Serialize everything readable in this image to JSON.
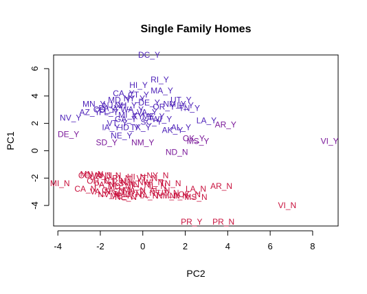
{
  "chart_data": {
    "type": "scatter",
    "title": "Single Family Homes",
    "xlabel": "PC2",
    "ylabel": "PC1",
    "xlim": [
      -4.2,
      9.2
    ],
    "ylim": [
      -5.5,
      7.0
    ],
    "x_ticks": [
      -4,
      -2,
      0,
      2,
      4,
      6,
      8
    ],
    "y_ticks": [
      -4,
      -2,
      0,
      2,
      4,
      6
    ],
    "grid": false,
    "legend": "none",
    "colors": {
      "Y": "#4b1fb8",
      "N": "#c8103c",
      "both": "#7a1899"
    },
    "points": [
      {
        "label": "DC_Y",
        "x": 0.3,
        "y": 7.0,
        "color": "#4b1fb8"
      },
      {
        "label": "RI_Y",
        "x": 0.8,
        "y": 5.2,
        "color": "#4b1fb8"
      },
      {
        "label": "HI_Y",
        "x": -0.2,
        "y": 4.8,
        "color": "#4b1fb8"
      },
      {
        "label": "MA_Y",
        "x": 0.9,
        "y": 4.4,
        "color": "#4b1fb8"
      },
      {
        "label": "CA_Y",
        "x": -0.9,
        "y": 4.2,
        "color": "#4b1fb8"
      },
      {
        "label": "CT_Y",
        "x": -0.2,
        "y": 4.1,
        "color": "#4b1fb8"
      },
      {
        "label": "NY_Y",
        "x": -0.4,
        "y": 3.8,
        "color": "#4b1fb8"
      },
      {
        "label": "MD_Y",
        "x": -1.1,
        "y": 3.7,
        "color": "#4b1fb8"
      },
      {
        "label": "UT_Y",
        "x": 1.8,
        "y": 3.7,
        "color": "#4b1fb8"
      },
      {
        "label": "MN_Y",
        "x": -2.3,
        "y": 3.4,
        "color": "#4b1fb8"
      },
      {
        "label": "NJ_Y",
        "x": -1.4,
        "y": 3.3,
        "color": "#4b1fb8"
      },
      {
        "label": "NH_Y",
        "x": -0.8,
        "y": 3.3,
        "color": "#4b1fb8"
      },
      {
        "label": "DE_Y",
        "x": 0.3,
        "y": 3.5,
        "color": "#4b1fb8"
      },
      {
        "label": "OR_Y",
        "x": 1.0,
        "y": 3.2,
        "color": "#4b1fb8"
      },
      {
        "label": "NM_Y",
        "x": 1.5,
        "y": 3.4,
        "color": "#4b1fb8"
      },
      {
        "label": "IL_Y",
        "x": 2.0,
        "y": 3.3,
        "color": "#4b1fb8"
      },
      {
        "label": "PA_Y",
        "x": -1.6,
        "y": 3.1,
        "color": "#4b1fb8"
      },
      {
        "label": "WA_Y",
        "x": -0.5,
        "y": 3.0,
        "color": "#4b1fb8"
      },
      {
        "label": "TN_Y",
        "x": 2.2,
        "y": 3.1,
        "color": "#4b1fb8"
      },
      {
        "label": "CO_Y",
        "x": -1.8,
        "y": 3.0,
        "color": "#4b1fb8"
      },
      {
        "label": "VA_Y",
        "x": 0.2,
        "y": 2.8,
        "color": "#4b1fb8"
      },
      {
        "label": "AZ_Y",
        "x": -2.5,
        "y": 2.8,
        "color": "#4b1fb8"
      },
      {
        "label": "FL_Y",
        "x": -1.6,
        "y": 2.8,
        "color": "#4b1fb8"
      },
      {
        "label": "MI_Y",
        "x": -0.7,
        "y": 2.6,
        "color": "#4b1fb8"
      },
      {
        "label": "KY_Y",
        "x": 0.0,
        "y": 2.5,
        "color": "#4b1fb8"
      },
      {
        "label": "ME_Y",
        "x": 0.5,
        "y": 2.5,
        "color": "#4b1fb8"
      },
      {
        "label": "NV_Y",
        "x": -3.4,
        "y": 2.4,
        "color": "#4b1fb8"
      },
      {
        "label": "GA_Y",
        "x": -0.8,
        "y": 2.3,
        "color": "#4b1fb8"
      },
      {
        "label": "VT_Y",
        "x": -1.2,
        "y": 2.0,
        "color": "#4b1fb8"
      },
      {
        "label": "SC_Y",
        "x": 0.4,
        "y": 2.1,
        "color": "#4b1fb8"
      },
      {
        "label": "WI_Y",
        "x": 0.9,
        "y": 2.3,
        "color": "#4b1fb8"
      },
      {
        "label": "LA_Y",
        "x": 3.0,
        "y": 2.2,
        "color": "#4b1fb8"
      },
      {
        "label": "AR_Y",
        "x": 3.9,
        "y": 1.9,
        "color": "#7a1899"
      },
      {
        "label": "IA_Y",
        "x": -1.5,
        "y": 1.7,
        "color": "#4b1fb8"
      },
      {
        "label": "ID_Y",
        "x": -0.6,
        "y": 1.7,
        "color": "#4b1fb8"
      },
      {
        "label": "TX_Y",
        "x": -0.1,
        "y": 1.7,
        "color": "#4b1fb8"
      },
      {
        "label": "AL_Y",
        "x": 1.8,
        "y": 1.7,
        "color": "#4b1fb8"
      },
      {
        "label": "AK_Y",
        "x": 1.4,
        "y": 1.5,
        "color": "#4b1fb8"
      },
      {
        "label": "NE_Y",
        "x": -1.0,
        "y": 1.1,
        "color": "#4b1fb8"
      },
      {
        "label": "DE_Y",
        "x": -3.5,
        "y": 1.2,
        "color": "#7a1899"
      },
      {
        "label": "OK_Y",
        "x": 2.4,
        "y": 0.9,
        "color": "#7a1899"
      },
      {
        "label": "MS_Y",
        "x": 2.6,
        "y": 0.7,
        "color": "#7a1899"
      },
      {
        "label": "SD_Y",
        "x": -1.7,
        "y": 0.6,
        "color": "#7a1899"
      },
      {
        "label": "NM_Y",
        "x": 0.0,
        "y": 0.6,
        "color": "#7a1899"
      },
      {
        "label": "VI_Y",
        "x": 8.8,
        "y": 0.7,
        "color": "#7a1899"
      },
      {
        "label": "ND_N",
        "x": 1.6,
        "y": -0.1,
        "color": "#7a1899"
      },
      {
        "label": "CO_N",
        "x": -2.5,
        "y": -1.8,
        "color": "#c8103c"
      },
      {
        "label": "WA_N",
        "x": -2.0,
        "y": -1.8,
        "color": "#c8103c"
      },
      {
        "label": "MN_N",
        "x": -2.4,
        "y": -1.7,
        "color": "#c8103c"
      },
      {
        "label": "NJ_N",
        "x": -1.5,
        "y": -1.8,
        "color": "#c8103c"
      },
      {
        "label": "NY_N",
        "x": 0.7,
        "y": -1.8,
        "color": "#c8103c"
      },
      {
        "label": "HI_N",
        "x": -0.3,
        "y": -1.9,
        "color": "#c8103c"
      },
      {
        "label": "RI_N",
        "x": -1.0,
        "y": -2.0,
        "color": "#c8103c"
      },
      {
        "label": "VT_N",
        "x": 0.2,
        "y": -2.0,
        "color": "#c8103c"
      },
      {
        "label": "OH_N",
        "x": -2.1,
        "y": -2.2,
        "color": "#c8103c"
      },
      {
        "label": "CT_N",
        "x": -1.3,
        "y": -2.2,
        "color": "#c8103c"
      },
      {
        "label": "NH_N",
        "x": -0.5,
        "y": -2.3,
        "color": "#c8103c"
      },
      {
        "label": "WI_N",
        "x": 0.5,
        "y": -2.3,
        "color": "#c8103c"
      },
      {
        "label": "MI_N",
        "x": -3.9,
        "y": -2.4,
        "color": "#c8103c"
      },
      {
        "label": "KS_N",
        "x": -0.9,
        "y": -2.4,
        "color": "#c8103c"
      },
      {
        "label": "TN_N",
        "x": 1.3,
        "y": -2.4,
        "color": "#c8103c"
      },
      {
        "label": "PA_N",
        "x": -1.8,
        "y": -2.5,
        "color": "#c8103c"
      },
      {
        "label": "IN_N",
        "x": -0.1,
        "y": -2.5,
        "color": "#c8103c"
      },
      {
        "label": "AR_N",
        "x": 3.7,
        "y": -2.6,
        "color": "#c8103c"
      },
      {
        "label": "MD_N",
        "x": -1.1,
        "y": -2.6,
        "color": "#c8103c"
      },
      {
        "label": "IL_N",
        "x": 0.7,
        "y": -2.6,
        "color": "#c8103c"
      },
      {
        "label": "CA_N",
        "x": -2.7,
        "y": -2.8,
        "color": "#c8103c"
      },
      {
        "label": "LA_N",
        "x": 2.5,
        "y": -2.8,
        "color": "#c8103c"
      },
      {
        "label": "GA_N",
        "x": -1.4,
        "y": -2.9,
        "color": "#c8103c"
      },
      {
        "label": "MA_N",
        "x": -0.4,
        "y": -2.9,
        "color": "#c8103c"
      },
      {
        "label": "AL_N",
        "x": 0.8,
        "y": -2.9,
        "color": "#c8103c"
      },
      {
        "label": "VA_N",
        "x": -2.0,
        "y": -3.0,
        "color": "#c8103c"
      },
      {
        "label": "SC_N",
        "x": -0.9,
        "y": -3.0,
        "color": "#c8103c"
      },
      {
        "label": "TX_N",
        "x": 0.1,
        "y": -3.1,
        "color": "#c8103c"
      },
      {
        "label": "UT_N",
        "x": 1.2,
        "y": -3.1,
        "color": "#c8103c"
      },
      {
        "label": "ID_N",
        "x": -0.5,
        "y": -3.2,
        "color": "#c8103c"
      },
      {
        "label": "OK_N",
        "x": 2.2,
        "y": -3.2,
        "color": "#c8103c"
      },
      {
        "label": "NV_N",
        "x": -1.6,
        "y": -3.2,
        "color": "#c8103c"
      },
      {
        "label": "ME_N",
        "x": -1.0,
        "y": -3.3,
        "color": "#c8103c"
      },
      {
        "label": "NE_N",
        "x": -0.8,
        "y": -3.4,
        "color": "#c8103c"
      },
      {
        "label": "NM_N",
        "x": 1.2,
        "y": -3.3,
        "color": "#c8103c"
      },
      {
        "label": "IA_N",
        "x": 0.3,
        "y": -3.3,
        "color": "#c8103c"
      },
      {
        "label": "NI_N",
        "x": 1.7,
        "y": -3.3,
        "color": "#c8103c"
      },
      {
        "label": "MS_N",
        "x": 2.5,
        "y": -3.4,
        "color": "#c8103c"
      },
      {
        "label": "VI_N",
        "x": 6.8,
        "y": -4.0,
        "color": "#c8103c"
      },
      {
        "label": "PR_Y",
        "x": 2.3,
        "y": -5.2,
        "color": "#c8103c"
      },
      {
        "label": "PR_N",
        "x": 3.8,
        "y": -5.2,
        "color": "#c8103c"
      }
    ]
  }
}
